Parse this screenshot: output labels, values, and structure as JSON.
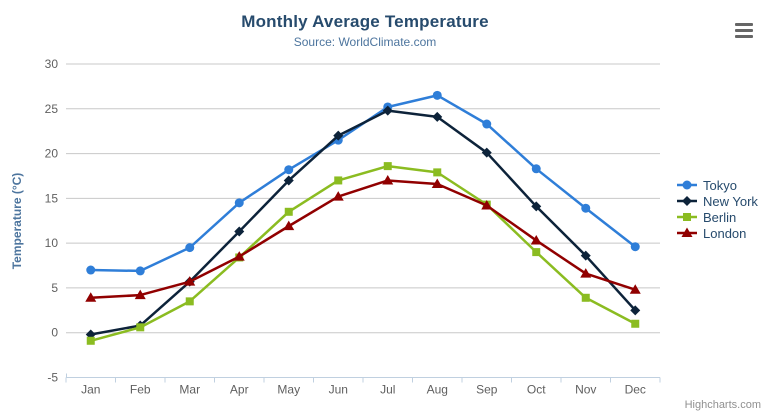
{
  "credits": {
    "label": "Highcharts.com"
  },
  "toolbar": {
    "context_menu_tooltip": "Chart context menu"
  },
  "colors": {
    "background": "#ffffff",
    "title": "#274b6d",
    "subtitle": "#4d759e",
    "axis_title": "#4d759e",
    "axis_label": "#606060",
    "axis_line": "#c0d0e0",
    "gridline": "#c8c8c8",
    "legend_text": "#274b6d",
    "credits": "#909090",
    "menu_icon": "#666666"
  },
  "chart_data": {
    "type": "line",
    "title": "Monthly Average Temperature",
    "subtitle": "Source: WorldClimate.com",
    "categories": [
      "Jan",
      "Feb",
      "Mar",
      "Apr",
      "May",
      "Jun",
      "Jul",
      "Aug",
      "Sep",
      "Oct",
      "Nov",
      "Dec"
    ],
    "series": [
      {
        "name": "Tokyo",
        "color": "#2f7ed8",
        "marker": "circle",
        "values": [
          7.0,
          6.9,
          9.5,
          14.5,
          18.2,
          21.5,
          25.2,
          26.5,
          23.3,
          18.3,
          13.9,
          9.6
        ]
      },
      {
        "name": "New York",
        "color": "#0d233a",
        "marker": "diamond",
        "values": [
          -0.2,
          0.8,
          5.7,
          11.3,
          17.0,
          22.0,
          24.8,
          24.1,
          20.1,
          14.1,
          8.6,
          2.5
        ]
      },
      {
        "name": "Berlin",
        "color": "#8bbc21",
        "marker": "square",
        "values": [
          -0.9,
          0.6,
          3.5,
          8.4,
          13.5,
          17.0,
          18.6,
          17.9,
          14.3,
          9.0,
          3.9,
          1.0
        ]
      },
      {
        "name": "London",
        "color": "#910000",
        "marker": "triangle",
        "values": [
          3.9,
          4.2,
          5.7,
          8.5,
          11.9,
          15.2,
          17.0,
          16.6,
          14.2,
          10.3,
          6.6,
          4.8
        ]
      }
    ],
    "xlabel": "",
    "ylabel": "Temperature (°C)",
    "ylim": [
      -5,
      30
    ],
    "ytick_interval": 5,
    "grid": true,
    "legend_position": "right"
  }
}
